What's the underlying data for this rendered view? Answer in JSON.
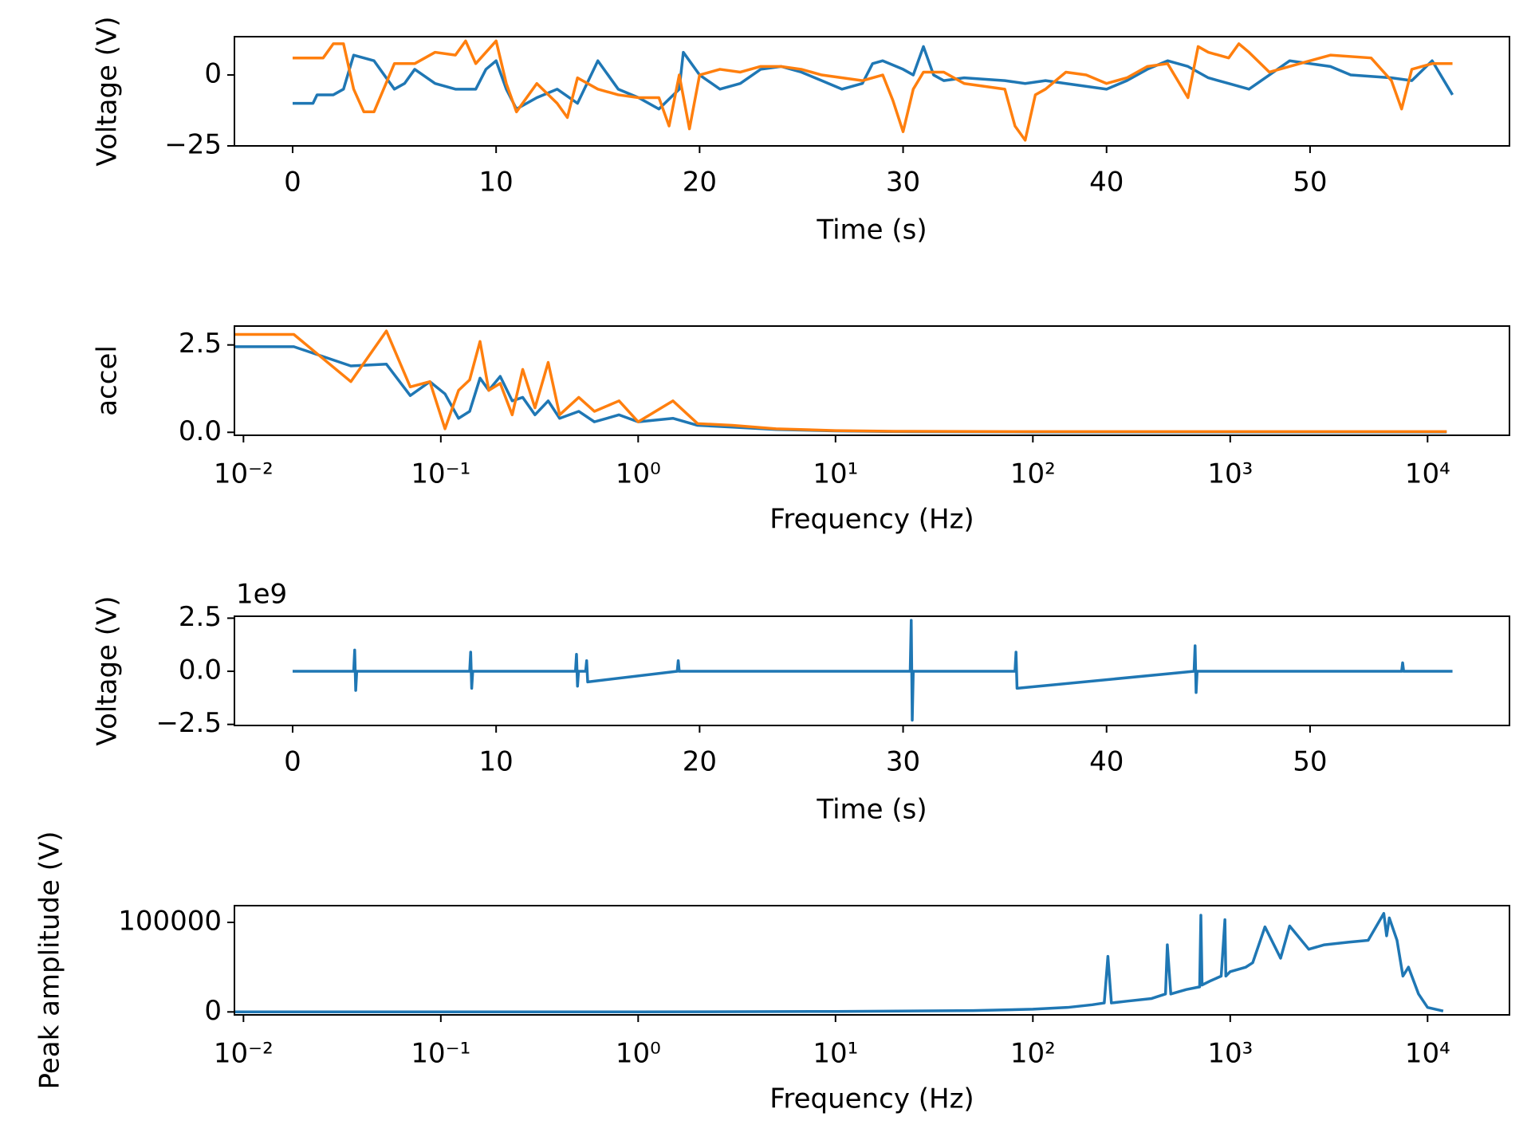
{
  "chart_data": [
    {
      "type": "line",
      "xlabel": "Time (s)",
      "ylabel": "Voltage (V)",
      "xscale": "linear",
      "xlim": [
        -2.86,
        59.8
      ],
      "ylim": [
        -25,
        13.5
      ],
      "xticks": [
        0,
        10,
        20,
        30,
        40,
        50
      ],
      "yticks": [
        {
          "value": -25,
          "label": "−25"
        },
        0
      ],
      "series": [
        {
          "color": "#1f77b4",
          "x": [
            0,
            1,
            1.2,
            2,
            2.5,
            3,
            4,
            5,
            5.5,
            6,
            7,
            8,
            9,
            9.5,
            10,
            10.5,
            11,
            12,
            13,
            14,
            15,
            16,
            17,
            18,
            19,
            19.2,
            20,
            21,
            22,
            23,
            24,
            25,
            26,
            27,
            28,
            28.5,
            29,
            30,
            30.5,
            31,
            31.5,
            32,
            33,
            35,
            36,
            37,
            38,
            40,
            41,
            42,
            43,
            44,
            45,
            46,
            47,
            48,
            49,
            50,
            51,
            52,
            54,
            55,
            56,
            57
          ],
          "values": [
            -10,
            -10,
            -7,
            -7,
            -5,
            7,
            5,
            -5,
            -3,
            2,
            -3,
            -5,
            -5,
            2,
            5,
            -5,
            -12,
            -8,
            -5,
            -10,
            5,
            -5,
            -8,
            -12,
            -5,
            8,
            0,
            -5,
            -3,
            2,
            3,
            1,
            -2,
            -5,
            -3,
            4,
            5,
            2,
            0,
            10,
            0,
            -2,
            -1,
            -2,
            -3,
            -2,
            -3,
            -5,
            -2,
            2,
            5,
            3,
            -1,
            -3,
            -5,
            0,
            5,
            4,
            3,
            0,
            -1,
            -2,
            5,
            -7
          ]
        },
        {
          "color": "#ff7f0e",
          "x": [
            0,
            1.5,
            2,
            2.5,
            3,
            3.5,
            4,
            5,
            6,
            7,
            8,
            8.5,
            9,
            10,
            10.5,
            11,
            12,
            13,
            13.5,
            14,
            15,
            16,
            17,
            18,
            18.5,
            19,
            19.5,
            20,
            21,
            22,
            23,
            24,
            25,
            26,
            28,
            29,
            29.5,
            30,
            30.5,
            31,
            32,
            33,
            35,
            35.5,
            36,
            36.5,
            37,
            38,
            39,
            40,
            41,
            42,
            43,
            44,
            44.5,
            45,
            46,
            46.5,
            47,
            48,
            49,
            50,
            51,
            53,
            54,
            54.5,
            55,
            56,
            57
          ],
          "values": [
            6,
            6,
            11,
            11,
            -5,
            -13,
            -13,
            4,
            4,
            8,
            7,
            12,
            4,
            12,
            -3,
            -13,
            -3,
            -10,
            -15,
            -1,
            -5,
            -7,
            -8,
            -8,
            -18,
            0,
            -19,
            0,
            2,
            1,
            3,
            3,
            2,
            0,
            -2,
            0,
            -9,
            -20,
            -5,
            1,
            1,
            -3,
            -5,
            -18,
            -23,
            -7,
            -5,
            1,
            0,
            -3,
            -1,
            3,
            4,
            -8,
            10,
            8,
            6,
            11,
            8,
            1,
            3,
            5,
            7,
            6,
            -2,
            -12,
            2,
            4,
            4
          ]
        }
      ]
    },
    {
      "type": "line",
      "xlabel": "Frequency (Hz)",
      "ylabel": "accel",
      "xscale": "log",
      "xlim": [
        0.009,
        26000
      ],
      "ylim": [
        -0.085,
        3.04
      ],
      "xticks": [
        {
          "value": 0.01,
          "label": "10⁻²"
        },
        {
          "value": 0.1,
          "label": "10⁻¹"
        },
        {
          "value": 1,
          "label": "10⁰"
        },
        {
          "value": 10,
          "label": "10¹"
        },
        {
          "value": 100,
          "label": "10²"
        },
        {
          "value": 1000,
          "label": "10³"
        },
        {
          "value": 10000,
          "label": "10⁴"
        }
      ],
      "yticks": [
        {
          "value": 0,
          "label": "0.0"
        },
        2.5
      ],
      "series": [
        {
          "color": "#1f77b4",
          "x": [
            0.009,
            0.018,
            0.035,
            0.053,
            0.07,
            0.088,
            0.105,
            0.123,
            0.14,
            0.158,
            0.175,
            0.2,
            0.23,
            0.26,
            0.3,
            0.35,
            0.4,
            0.5,
            0.6,
            0.8,
            1,
            1.5,
            2,
            3,
            5,
            10,
            20,
            100,
            1000,
            12500
          ],
          "values": [
            2.45,
            2.45,
            1.9,
            1.95,
            1.05,
            1.45,
            1.1,
            0.4,
            0.6,
            1.55,
            1.2,
            1.6,
            0.9,
            1.0,
            0.5,
            0.9,
            0.4,
            0.6,
            0.3,
            0.5,
            0.3,
            0.4,
            0.2,
            0.15,
            0.08,
            0.04,
            0.02,
            0.01,
            0.01,
            0.01
          ]
        },
        {
          "color": "#ff7f0e",
          "x": [
            0.009,
            0.018,
            0.035,
            0.053,
            0.07,
            0.088,
            0.105,
            0.123,
            0.14,
            0.158,
            0.175,
            0.2,
            0.23,
            0.26,
            0.3,
            0.35,
            0.4,
            0.5,
            0.6,
            0.8,
            1,
            1.5,
            2,
            3,
            5,
            10,
            20,
            100,
            1000,
            12500
          ],
          "values": [
            2.8,
            2.8,
            1.45,
            2.9,
            1.3,
            1.45,
            0.1,
            1.2,
            1.5,
            2.6,
            1.2,
            1.4,
            0.5,
            1.8,
            0.7,
            2.0,
            0.5,
            1.0,
            0.6,
            0.9,
            0.3,
            0.9,
            0.25,
            0.2,
            0.1,
            0.05,
            0.03,
            0.02,
            0.02,
            0.02
          ]
        }
      ]
    },
    {
      "type": "line",
      "xlabel": "Time (s)",
      "ylabel": "Voltage (V)",
      "offset_label": "1e9",
      "xscale": "linear",
      "xlim": [
        -2.86,
        59.8
      ],
      "ylim": [
        -2.55,
        2.59
      ],
      "xticks": [
        0,
        10,
        20,
        30,
        40,
        50
      ],
      "yticks": [
        {
          "value": -2.5,
          "label": "−2.5"
        },
        {
          "value": 0,
          "label": "0.0"
        },
        2.5
      ],
      "series": [
        {
          "color": "#1f77b4",
          "x": [
            0,
            3,
            3.05,
            3.1,
            3.15,
            8.7,
            8.75,
            8.8,
            8.85,
            13.9,
            13.95,
            14,
            14.05,
            14.4,
            14.45,
            14.5,
            18.9,
            18.95,
            19,
            30.35,
            30.4,
            30.45,
            30.5,
            35.5,
            35.55,
            35.6,
            44.3,
            44.35,
            44.4,
            44.45,
            54.5,
            54.55,
            54.6,
            57
          ],
          "values": [
            0,
            0,
            1.0,
            -0.9,
            0,
            0,
            0.9,
            -0.8,
            0,
            0,
            0.8,
            -0.7,
            0,
            0,
            0.5,
            -0.5,
            0,
            0.5,
            0,
            0,
            2.4,
            -2.3,
            0,
            0,
            0.9,
            -0.8,
            0,
            1.2,
            -1.0,
            0,
            0,
            0.4,
            0,
            0
          ]
        }
      ]
    },
    {
      "type": "line",
      "xlabel": "Frequency (Hz)",
      "ylabel": "Peak amplitude (V)",
      "xscale": "log",
      "xlim": [
        0.009,
        26000
      ],
      "ylim": [
        -3300,
        118700
      ],
      "xticks": [
        {
          "value": 0.01,
          "label": "10⁻²"
        },
        {
          "value": 0.1,
          "label": "10⁻¹"
        },
        {
          "value": 1,
          "label": "10⁰"
        },
        {
          "value": 10,
          "label": "10¹"
        },
        {
          "value": 100,
          "label": "10²"
        },
        {
          "value": 1000,
          "label": "10³"
        },
        {
          "value": 10000,
          "label": "10⁴"
        }
      ],
      "yticks": [
        0,
        100000
      ],
      "series": [
        {
          "color": "#1f77b4",
          "x": [
            0.009,
            1,
            10,
            50,
            100,
            150,
            200,
            230,
            240,
            250,
            300,
            400,
            470,
            480,
            500,
            600,
            700,
            710,
            720,
            800,
            900,
            940,
            950,
            1000,
            1200,
            1300,
            1500,
            1800,
            2000,
            2500,
            3000,
            4000,
            5000,
            6000,
            6200,
            6400,
            7000,
            7500,
            8000,
            9000,
            10000,
            12000
          ],
          "values": [
            0,
            0,
            500,
            1500,
            3000,
            5000,
            8000,
            10000,
            62000,
            10000,
            12000,
            15000,
            20000,
            75000,
            20000,
            25000,
            28000,
            108000,
            30000,
            35000,
            40000,
            103000,
            40000,
            45000,
            50000,
            55000,
            95000,
            60000,
            96000,
            70000,
            75000,
            78000,
            80000,
            110000,
            85000,
            105000,
            80000,
            40000,
            50000,
            20000,
            5000,
            1000
          ]
        }
      ]
    }
  ]
}
